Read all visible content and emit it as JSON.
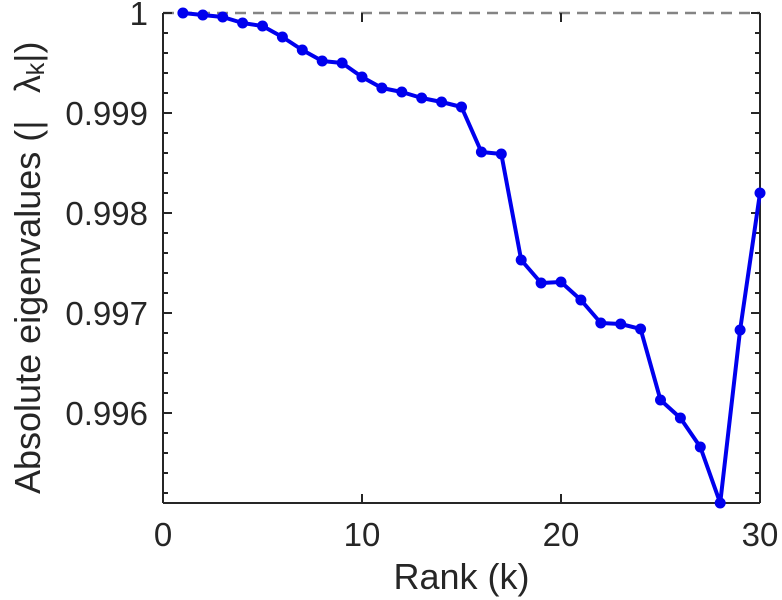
{
  "figure": {
    "xlabel": "Rank (k)",
    "ylabel": {
      "prefix": "Absolute eigenvalues (|",
      "lambda": "λ",
      "subscript": "k",
      "suffix": "|)"
    }
  },
  "chart_data": {
    "type": "line",
    "title": "",
    "xlabel": "Rank (k)",
    "ylabel": "Absolute eigenvalues (|λ_k|)",
    "x": [
      1,
      2,
      3,
      4,
      5,
      6,
      7,
      8,
      9,
      10,
      11,
      12,
      13,
      14,
      15,
      16,
      17,
      18,
      19,
      20,
      21,
      22,
      23,
      24,
      25,
      26,
      27,
      28,
      29,
      30
    ],
    "series": [
      {
        "name": "absolute eigenvalues |λ_k|",
        "values": [
          1.0,
          0.99998,
          0.99996,
          0.9999,
          0.99987,
          0.99976,
          0.99963,
          0.99952,
          0.9995,
          0.99936,
          0.99925,
          0.99921,
          0.99915,
          0.99911,
          0.99906,
          0.99861,
          0.99859,
          0.99753,
          0.9973,
          0.99731,
          0.99713,
          0.9969,
          0.99689,
          0.99684,
          0.99613,
          0.99595,
          0.99566,
          0.9951,
          0.99683,
          0.9982
        ],
        "color": "#0000EE",
        "marker": "filled-circle",
        "line_width": 4
      }
    ],
    "xlim": [
      0,
      30
    ],
    "ylim": [
      0.9951,
      1.0
    ],
    "xticks": [
      0,
      10,
      20,
      30
    ],
    "xtick_labels": [
      "0",
      "10",
      "20",
      "30"
    ],
    "yticks": [
      1.0,
      0.999,
      0.998,
      0.997,
      0.996
    ],
    "ytick_labels": [
      "1",
      "0.999",
      "0.998",
      "0.997",
      "0.996"
    ],
    "y_minor_tick_step": 0.0002,
    "reference_line": {
      "y": 1.0,
      "style": "dashed",
      "color": "#848484"
    },
    "grid": false,
    "legend_position": "none",
    "tick_direction": "in",
    "axis_color": "#262626",
    "text_color": "#262626",
    "background_color": "#ffffff"
  }
}
